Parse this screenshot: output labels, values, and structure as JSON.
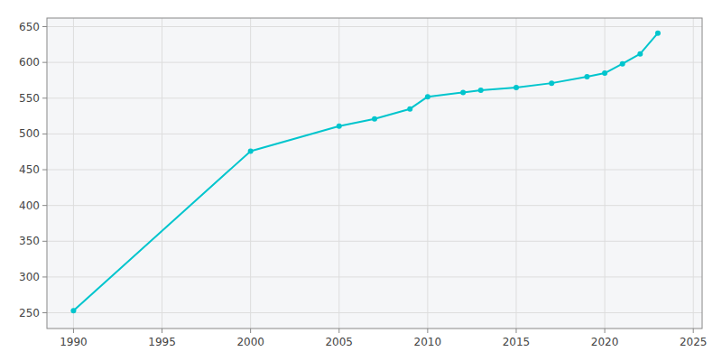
{
  "chart_data": {
    "type": "line",
    "x": [
      1990,
      2000,
      2005,
      2007,
      2009,
      2010,
      2012,
      2013,
      2015,
      2017,
      2019,
      2020,
      2021,
      2022,
      2023
    ],
    "values": [
      253,
      476,
      511,
      521,
      535,
      552,
      558,
      561,
      565,
      571,
      580,
      585,
      598,
      612,
      641
    ],
    "color": "#00c5cd",
    "marker": "circle",
    "xlim": [
      1988.5,
      2025.5
    ],
    "ylim": [
      228,
      662
    ],
    "xticks": [
      1990,
      1995,
      2000,
      2005,
      2010,
      2015,
      2020,
      2025
    ],
    "yticks": [
      250,
      300,
      350,
      400,
      450,
      500,
      550,
      600,
      650
    ],
    "grid": true
  }
}
